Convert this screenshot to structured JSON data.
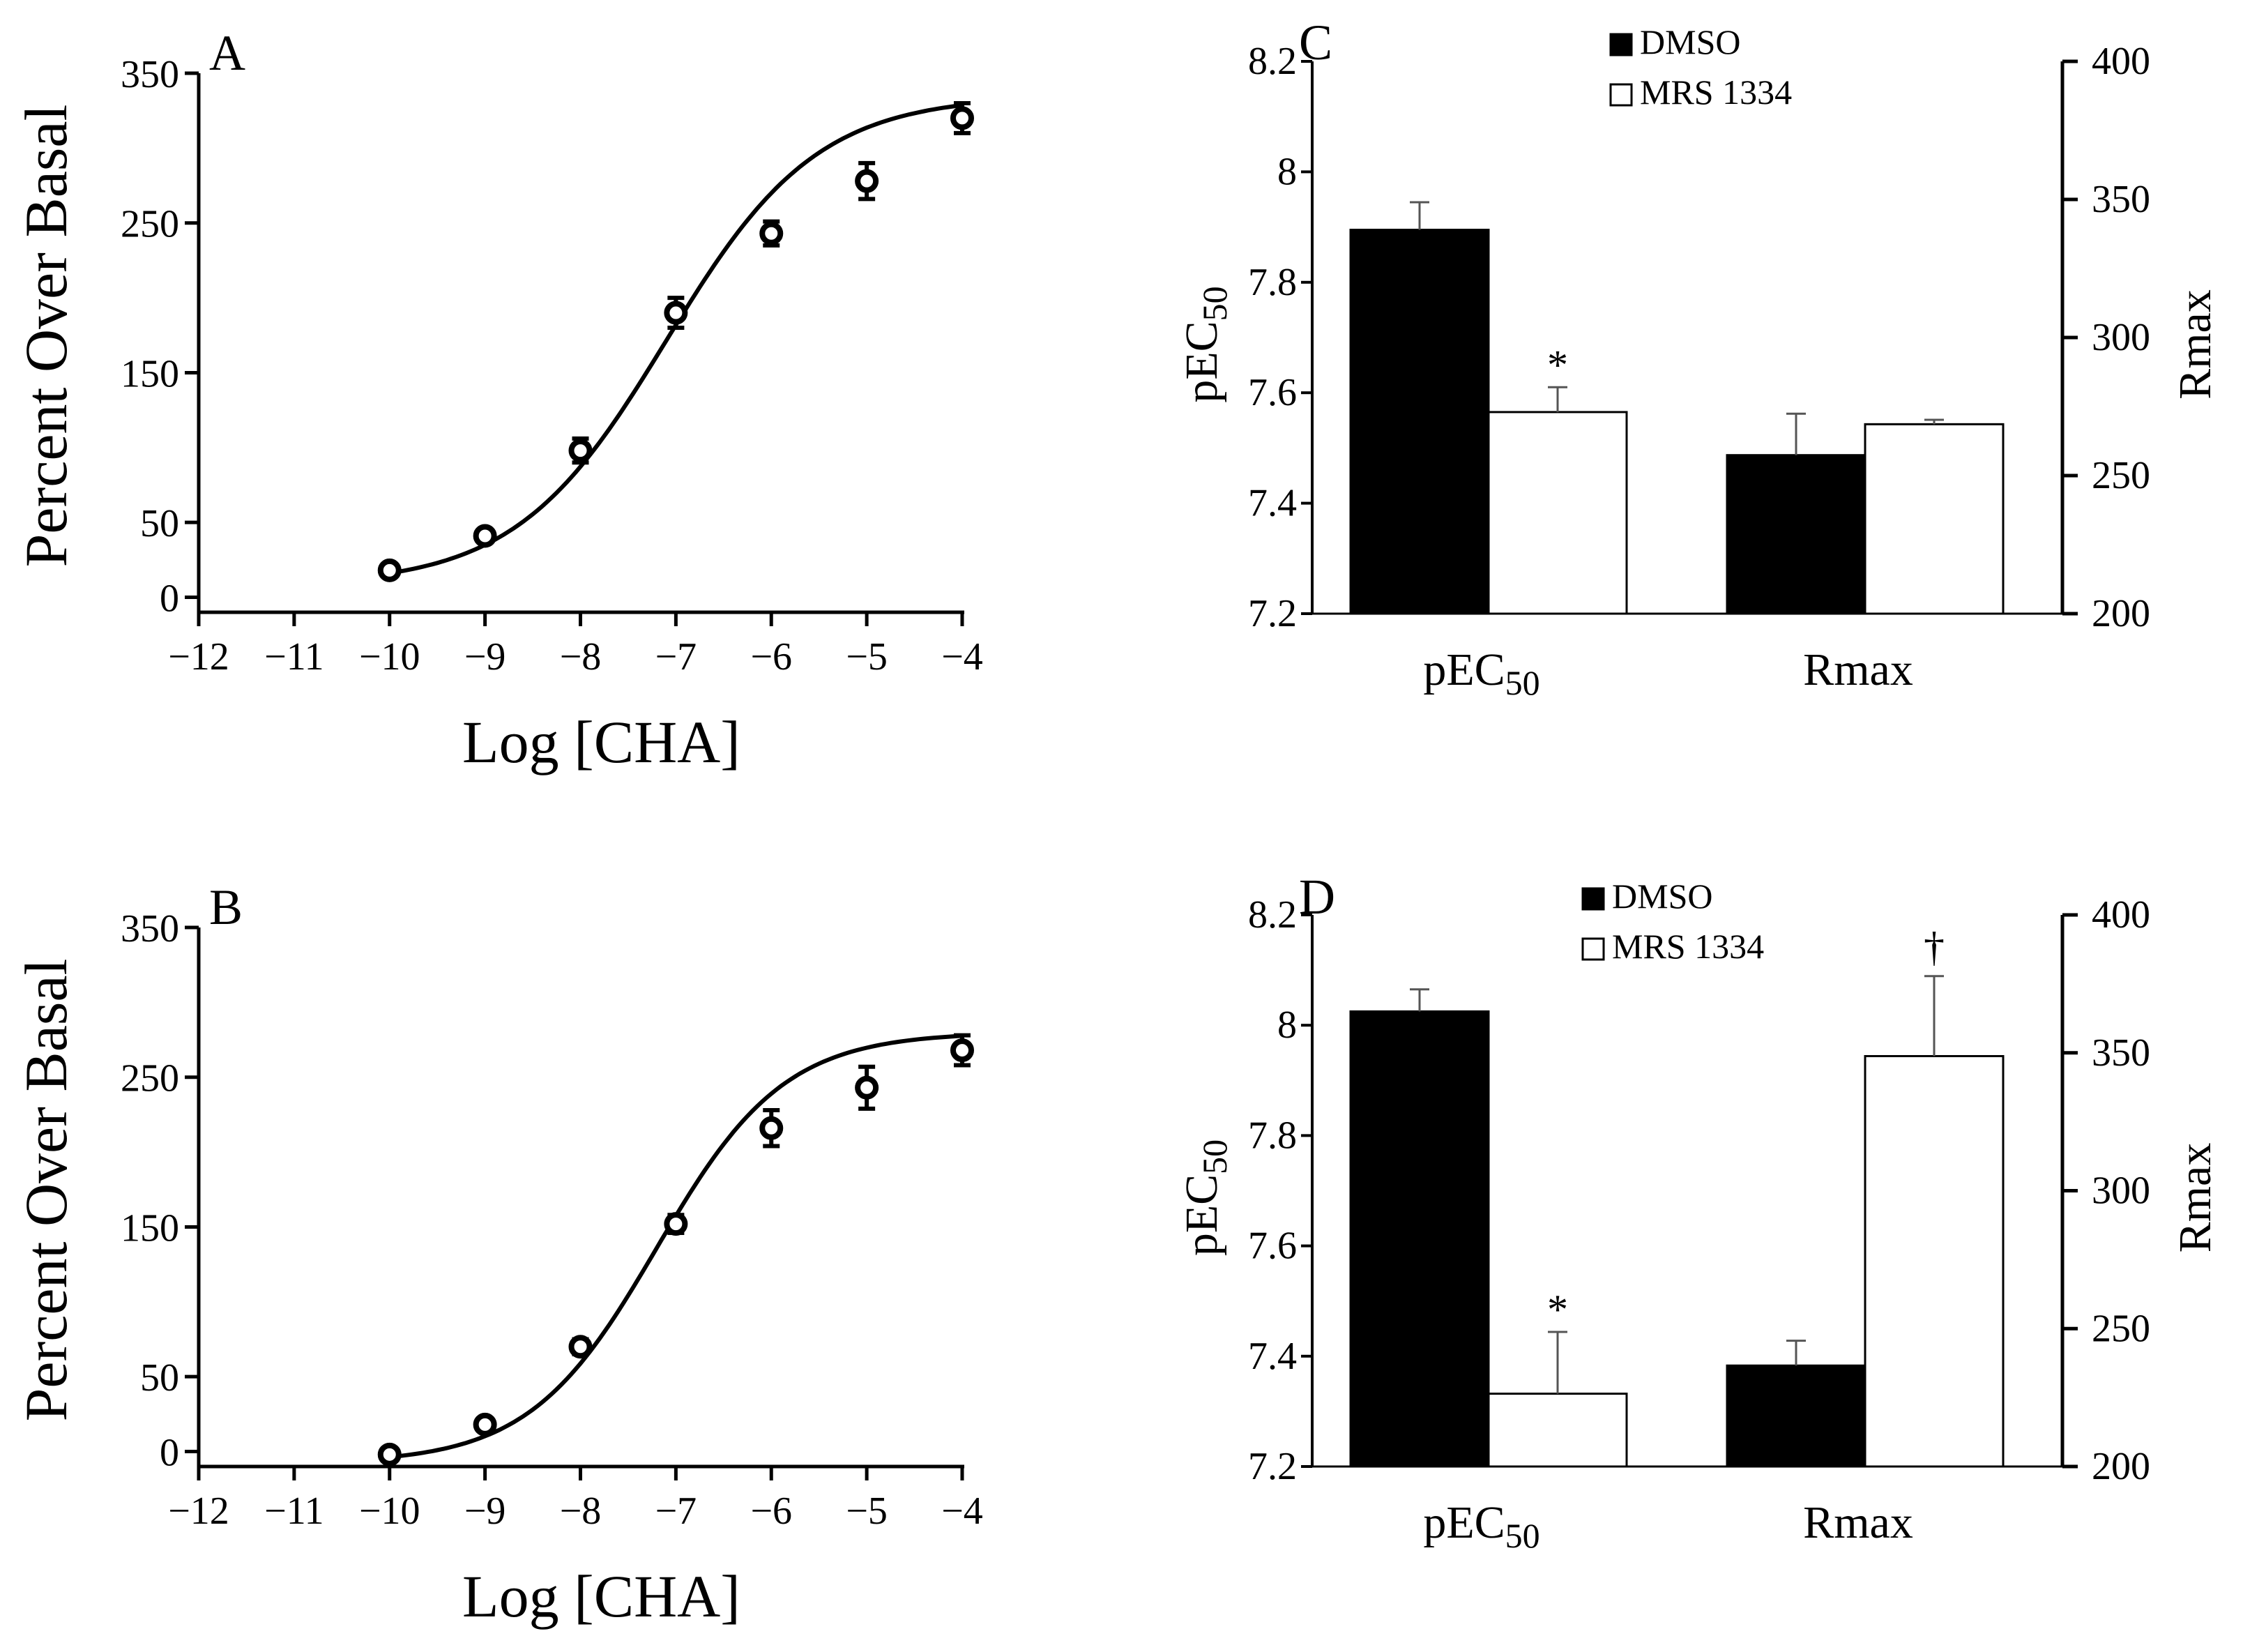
{
  "chart_data": [
    {
      "panel": "A",
      "type": "scatter",
      "xlabel": "Log [CHA]",
      "ylabel": "Percent Over Basal",
      "xlim": [
        -12,
        -4
      ],
      "ylim": [
        -10,
        350
      ],
      "xticks": [
        -12,
        -11,
        -10,
        -9,
        -8,
        -7,
        -6,
        -5,
        -4
      ],
      "xtick_labels": [
        "−12",
        "−11",
        "−10",
        "−9",
        "−8",
        "−7",
        "−6",
        "−5",
        "−4"
      ],
      "yticks": [
        0,
        50,
        150,
        250,
        350
      ],
      "ytick_labels": [
        "0",
        "50",
        "150",
        "250",
        "350"
      ],
      "x": [
        -10,
        -9,
        -8,
        -7,
        -6,
        -5,
        -4
      ],
      "y": [
        18,
        41,
        98,
        190,
        243,
        278,
        320
      ],
      "err": [
        4,
        4,
        8,
        10,
        8,
        12,
        10
      ],
      "fit": {
        "bottom": 8,
        "top": 335,
        "logEC50": -7.1,
        "hill": 0.55
      }
    },
    {
      "panel": "B",
      "type": "scatter",
      "xlabel": "Log [CHA]",
      "ylabel": "Percent Over Basal",
      "xlim": [
        -12,
        -4
      ],
      "ylim": [
        -10,
        350
      ],
      "xticks": [
        -12,
        -11,
        -10,
        -9,
        -8,
        -7,
        -6,
        -5,
        -4
      ],
      "xtick_labels": [
        "−12",
        "−11",
        "−10",
        "−9",
        "−8",
        "−7",
        "−6",
        "−5",
        "−4"
      ],
      "yticks": [
        0,
        50,
        150,
        250,
        350
      ],
      "ytick_labels": [
        "0",
        "50",
        "150",
        "250",
        "350"
      ],
      "x": [
        -10,
        -9,
        -8,
        -7,
        -6,
        -5,
        -4
      ],
      "y": [
        -2,
        18,
        70,
        152,
        216,
        243,
        268
      ],
      "err": [
        4,
        4,
        5,
        6,
        12,
        14,
        10
      ],
      "fit": {
        "bottom": -8,
        "top": 280,
        "logEC50": -7.2,
        "hill": 0.65
      }
    },
    {
      "panel": "C",
      "type": "bar",
      "categories": [
        "pEC50",
        "Rmax"
      ],
      "category_main": [
        "pEC",
        "Rmax"
      ],
      "category_sub": [
        "50",
        ""
      ],
      "series": [
        {
          "name": "DMSO",
          "color": "#000000",
          "values": [
            7.895,
            7.487
          ],
          "err": [
            0.05,
            0.075
          ]
        },
        {
          "name": "MRS 1334",
          "color": "#ffffff",
          "values": [
            7.565,
            7.543
          ],
          "err": [
            0.045,
            0.008
          ]
        }
      ],
      "ylabel_left": "pEC",
      "ylabel_left_sub": "50",
      "ylabel_right": "Rmax",
      "ylim_left": [
        7.2,
        8.2
      ],
      "ylim_right": [
        200,
        400
      ],
      "yticks_left": [
        "7.2",
        "7.4",
        "7.6",
        "7.8",
        "8",
        "8.2"
      ],
      "yticks_right": [
        "200",
        "250",
        "300",
        "350",
        "400"
      ],
      "annotations": [
        {
          "text": "*",
          "category": 0,
          "series": 1
        }
      ]
    },
    {
      "panel": "D",
      "type": "bar",
      "categories": [
        "pEC50",
        "Rmax"
      ],
      "category_main": [
        "pEC",
        "Rmax"
      ],
      "category_sub": [
        "50",
        ""
      ],
      "series": [
        {
          "name": "DMSO",
          "color": "#000000",
          "values": [
            8.025,
            7.383
          ],
          "err": [
            0.04,
            0.045
          ]
        },
        {
          "name": "MRS 1334",
          "color": "#ffffff",
          "values": [
            7.332,
            7.944
          ],
          "err": [
            0.112,
            0.145
          ]
        }
      ],
      "ylabel_left": "pEC",
      "ylabel_left_sub": "50",
      "ylabel_right": "Rmax",
      "ylim_left": [
        7.2,
        8.2
      ],
      "ylim_right": [
        200,
        400
      ],
      "yticks_left": [
        "7.2",
        "7.4",
        "7.6",
        "7.8",
        "8",
        "8.2"
      ],
      "yticks_right": [
        "200",
        "250",
        "300",
        "350",
        "400"
      ],
      "annotations": [
        {
          "text": "*",
          "category": 0,
          "series": 1
        },
        {
          "text": "†",
          "category": 1,
          "series": 1
        }
      ]
    }
  ]
}
